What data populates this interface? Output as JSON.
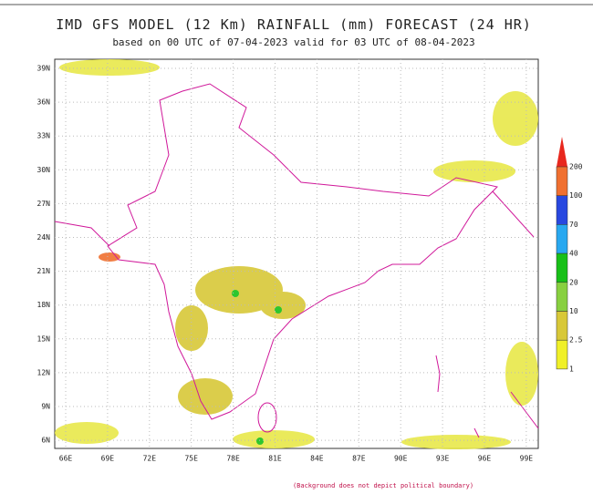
{
  "header": {
    "title": "IMD GFS MODEL (12 Km) RAINFALL (mm) FORECAST (24 HR)",
    "subtitle": "based on 00 UTC of 07-04-2023 valid for 03 UTC of 08-04-2023"
  },
  "map": {
    "lat_labels": [
      "39N",
      "36N",
      "33N",
      "30N",
      "27N",
      "24N",
      "21N",
      "18N",
      "15N",
      "12N",
      "9N",
      "6N"
    ],
    "lon_labels": [
      "66E",
      "69E",
      "72E",
      "75E",
      "78E",
      "81E",
      "84E",
      "87E",
      "90E",
      "93E",
      "96E",
      "99E"
    ]
  },
  "legend": {
    "levels": [
      200,
      100,
      70,
      40,
      20,
      10,
      2.5,
      1
    ],
    "colors": [
      "#e8281e",
      "#f07030",
      "#2848e0",
      "#28a8f0",
      "#18c018",
      "#88d040",
      "#d8c838",
      "#f0f028"
    ]
  },
  "footer": "(Background does not depict political boundary)"
}
